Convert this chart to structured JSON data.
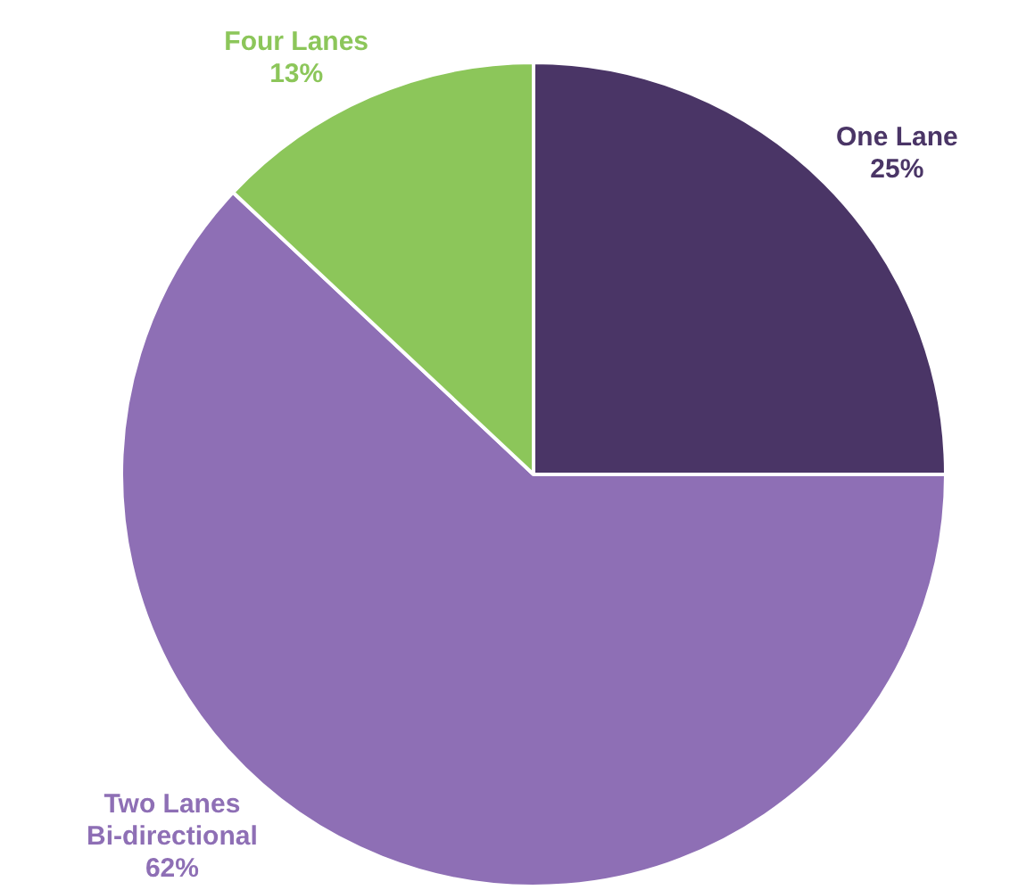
{
  "chart_data": {
    "type": "pie",
    "categories": [
      "One Lane",
      "Two Lanes Bi-directional",
      "Four Lanes"
    ],
    "values": [
      25,
      62,
      13
    ],
    "colors": [
      "#4a3566",
      "#8e6fb5",
      "#8cc65a"
    ],
    "value_labels": [
      "25%",
      "62%",
      "13%"
    ],
    "legend": false
  }
}
